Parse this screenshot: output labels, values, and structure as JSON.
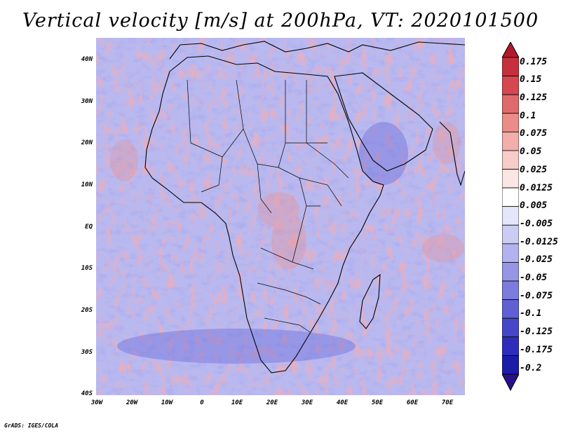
{
  "title": "Vertical velocity [m/s] at 200hPa, VT: 2020101500",
  "credit": "GrADS: IGES/COLA",
  "map": {
    "region": "Africa",
    "projection": "latlon",
    "lon_range": [
      -30,
      75
    ],
    "lat_range": [
      -40,
      45
    ],
    "y_axis_labels": [
      "40N",
      "30N",
      "20N",
      "10N",
      "EQ",
      "10S",
      "20S",
      "30S",
      "40S"
    ],
    "x_axis_labels": [
      "30W",
      "20W",
      "10W",
      "0",
      "10E",
      "20E",
      "30E",
      "40E",
      "50E",
      "60E",
      "70E"
    ]
  },
  "colorbar": {
    "labels": [
      "0.175",
      "0.15",
      "0.125",
      "0.1",
      "0.075",
      "0.05",
      "0.025",
      "0.0125",
      "0.005",
      "-0.005",
      "-0.0125",
      "-0.025",
      "-0.05",
      "-0.075",
      "-0.1",
      "-0.125",
      "-0.175",
      "-0.2"
    ],
    "colors": [
      "#b2182b",
      "#c6303c",
      "#d6474f",
      "#e06a6b",
      "#ea8d89",
      "#f3aea9",
      "#f8ccc8",
      "#fce6e4",
      "#ffffff",
      "#e6e6fb",
      "#cbcbf4",
      "#b2b2ee",
      "#9696e6",
      "#7c7cde",
      "#6060d4",
      "#4646c8",
      "#2e2eba",
      "#1c1ca8",
      "#2a0f8a"
    ]
  }
}
